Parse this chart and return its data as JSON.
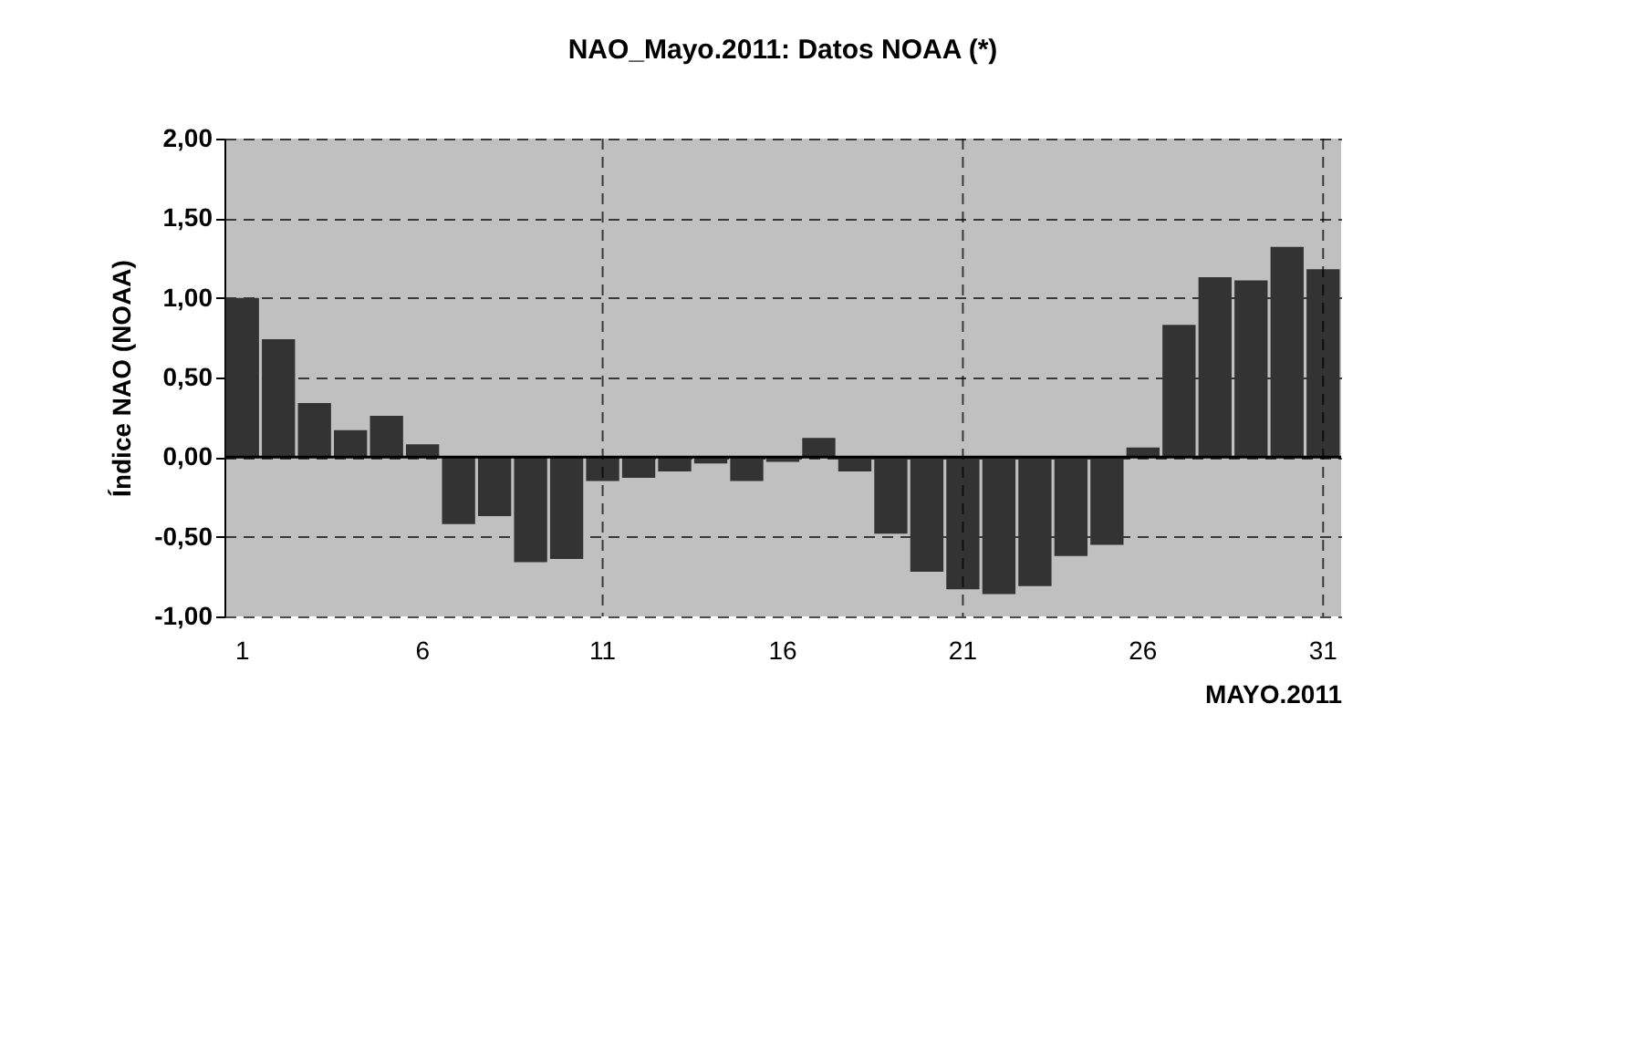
{
  "chart_data": {
    "type": "bar",
    "title": "NAO_Mayo.2011: Datos NOAA (*)",
    "xlabel": "MAYO.2011",
    "ylabel": "Índice NAO (NOAA)",
    "categories": [
      "1",
      null,
      null,
      null,
      null,
      "6",
      null,
      null,
      null,
      null,
      "11",
      null,
      null,
      null,
      null,
      "16",
      null,
      null,
      null,
      null,
      "21",
      null,
      null,
      null,
      null,
      "26",
      null,
      null,
      null,
      null,
      "31"
    ],
    "values": [
      1.0,
      0.74,
      0.34,
      0.17,
      0.26,
      0.08,
      -0.42,
      -0.37,
      -0.66,
      -0.64,
      -0.15,
      -0.13,
      -0.09,
      -0.04,
      -0.15,
      -0.03,
      0.12,
      -0.09,
      -0.48,
      -0.72,
      -0.83,
      -0.86,
      -0.81,
      -0.62,
      -0.55,
      0.06,
      0.83,
      1.13,
      1.11,
      1.32,
      1.18
    ],
    "color": "#333333",
    "ylim": [
      -1,
      2
    ],
    "yticks": [
      {
        "value": -1,
        "label": "-1,00"
      },
      {
        "value": -0.5,
        "label": "-0,50"
      },
      {
        "value": 0,
        "label": "0,00"
      },
      {
        "value": 0.5,
        "label": "0,50"
      },
      {
        "value": 1,
        "label": "1,00"
      },
      {
        "value": 1.5,
        "label": "1,50"
      },
      {
        "value": 2,
        "label": "2,00"
      }
    ],
    "grid": true
  }
}
